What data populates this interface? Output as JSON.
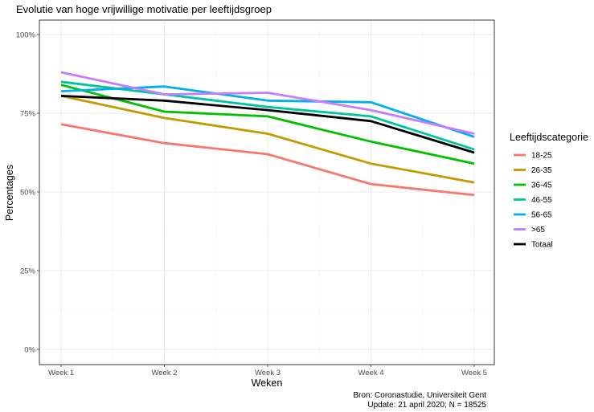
{
  "chart_data": {
    "type": "line",
    "title": "Evolutie van hoge vrijwillige motivatie per leeftijdsgroep",
    "xlabel": "Weken",
    "ylabel": "Percentages",
    "categories": [
      "Week 1",
      "Week 2",
      "Week 3",
      "Week 4",
      "Week 5"
    ],
    "y_ticks": [
      0,
      25,
      50,
      75,
      100
    ],
    "y_tick_labels": [
      "0%",
      "25%",
      "50%",
      "75%",
      "100%"
    ],
    "ylim": [
      0,
      100
    ],
    "grid": true,
    "legend": {
      "title": "Leeftijdscategorie",
      "placement": "right"
    },
    "series": [
      {
        "name": "18-25",
        "color": "#F8766D",
        "values": [
          71.5,
          65.5,
          62,
          52.5,
          49
        ]
      },
      {
        "name": "26-35",
        "color": "#C49A00",
        "values": [
          80.5,
          73.5,
          68.5,
          59,
          53
        ]
      },
      {
        "name": "36-45",
        "color": "#00C000",
        "values": [
          84,
          75.5,
          74,
          66,
          59
        ]
      },
      {
        "name": "46-55",
        "color": "#00C49A",
        "values": [
          85,
          81,
          77,
          74,
          63.5
        ]
      },
      {
        "name": "56-65",
        "color": "#00B0E8",
        "values": [
          82,
          83.5,
          79,
          78.5,
          67.5
        ]
      },
      {
        "name": ">65",
        "color": "#C77CFF",
        "values": [
          88,
          81,
          81.5,
          76,
          68.5
        ]
      },
      {
        "name": "Totaal",
        "color": "#000000",
        "values": [
          80.5,
          79,
          76,
          72.5,
          62.5
        ]
      }
    ],
    "caption": [
      "Bron: Coronastudie, Universiteit Gent",
      "Update: 21 april 2020; N = 18525"
    ]
  }
}
